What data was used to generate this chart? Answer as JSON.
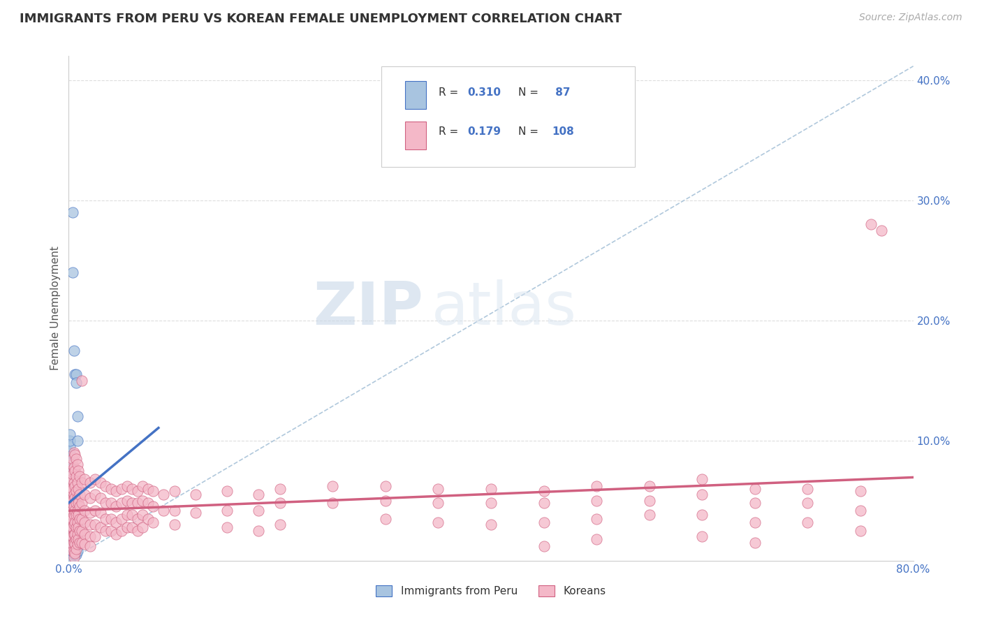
{
  "title": "IMMIGRANTS FROM PERU VS KOREAN FEMALE UNEMPLOYMENT CORRELATION CHART",
  "source": "Source: ZipAtlas.com",
  "ylabel": "Female Unemployment",
  "legend_label1": "Immigrants from Peru",
  "legend_label2": "Koreans",
  "color_peru": "#a8c4e0",
  "color_korean": "#f4b8c8",
  "color_line_peru": "#4472c4",
  "color_line_korean": "#d06080",
  "color_diag": "#b0c8dc",
  "xmin": 0.0,
  "xmax": 0.8,
  "ymin": 0.0,
  "ymax": 0.42,
  "yticks": [
    0.0,
    0.1,
    0.2,
    0.3,
    0.4
  ],
  "ytick_labels": [
    "",
    "10.0%",
    "20.0%",
    "30.0%",
    "40.0%"
  ],
  "xtick_labels": [
    "0.0%",
    "",
    "",
    "",
    "",
    "",
    "",
    "",
    "80.0%"
  ],
  "peru_scatter": [
    [
      0.001,
      0.038
    ],
    [
      0.001,
      0.04
    ],
    [
      0.001,
      0.042
    ],
    [
      0.001,
      0.045
    ],
    [
      0.001,
      0.048
    ],
    [
      0.001,
      0.052
    ],
    [
      0.001,
      0.06
    ],
    [
      0.001,
      0.065
    ],
    [
      0.001,
      0.068
    ],
    [
      0.001,
      0.07
    ],
    [
      0.001,
      0.072
    ],
    [
      0.001,
      0.075
    ],
    [
      0.001,
      0.078
    ],
    [
      0.001,
      0.08
    ],
    [
      0.001,
      0.082
    ],
    [
      0.001,
      0.085
    ],
    [
      0.001,
      0.09
    ],
    [
      0.001,
      0.095
    ],
    [
      0.001,
      0.1
    ],
    [
      0.001,
      0.105
    ],
    [
      0.001,
      0.025
    ],
    [
      0.001,
      0.02
    ],
    [
      0.001,
      0.015
    ],
    [
      0.001,
      0.01
    ],
    [
      0.001,
      0.008
    ],
    [
      0.001,
      0.005
    ],
    [
      0.001,
      0.003
    ],
    [
      0.001,
      0.001
    ],
    [
      0.002,
      0.07
    ],
    [
      0.002,
      0.06
    ],
    [
      0.002,
      0.055
    ],
    [
      0.002,
      0.05
    ],
    [
      0.002,
      0.045
    ],
    [
      0.002,
      0.04
    ],
    [
      0.002,
      0.035
    ],
    [
      0.002,
      0.03
    ],
    [
      0.002,
      0.025
    ],
    [
      0.002,
      0.02
    ],
    [
      0.002,
      0.015
    ],
    [
      0.002,
      0.01
    ],
    [
      0.003,
      0.065
    ],
    [
      0.003,
      0.055
    ],
    [
      0.003,
      0.05
    ],
    [
      0.003,
      0.045
    ],
    [
      0.003,
      0.04
    ],
    [
      0.003,
      0.035
    ],
    [
      0.003,
      0.03
    ],
    [
      0.003,
      0.025
    ],
    [
      0.003,
      0.02
    ],
    [
      0.003,
      0.015
    ],
    [
      0.003,
      0.01
    ],
    [
      0.003,
      0.008
    ],
    [
      0.004,
      0.29
    ],
    [
      0.004,
      0.24
    ],
    [
      0.004,
      0.06
    ],
    [
      0.004,
      0.055
    ],
    [
      0.004,
      0.048
    ],
    [
      0.004,
      0.04
    ],
    [
      0.004,
      0.035
    ],
    [
      0.004,
      0.028
    ],
    [
      0.004,
      0.022
    ],
    [
      0.004,
      0.015
    ],
    [
      0.005,
      0.175
    ],
    [
      0.005,
      0.055
    ],
    [
      0.005,
      0.045
    ],
    [
      0.005,
      0.038
    ],
    [
      0.005,
      0.03
    ],
    [
      0.005,
      0.022
    ],
    [
      0.005,
      0.015
    ],
    [
      0.005,
      0.008
    ],
    [
      0.006,
      0.155
    ],
    [
      0.006,
      0.05
    ],
    [
      0.006,
      0.04
    ],
    [
      0.006,
      0.03
    ],
    [
      0.006,
      0.02
    ],
    [
      0.006,
      0.012
    ],
    [
      0.006,
      0.005
    ],
    [
      0.007,
      0.155
    ],
    [
      0.007,
      0.148
    ],
    [
      0.007,
      0.05
    ],
    [
      0.007,
      0.04
    ],
    [
      0.007,
      0.03
    ],
    [
      0.007,
      0.02
    ],
    [
      0.007,
      0.01
    ],
    [
      0.007,
      0.005
    ],
    [
      0.008,
      0.12
    ],
    [
      0.008,
      0.1
    ],
    [
      0.008,
      0.045
    ],
    [
      0.008,
      0.035
    ],
    [
      0.008,
      0.025
    ],
    [
      0.008,
      0.015
    ],
    [
      0.008,
      0.008
    ]
  ],
  "korean_scatter": [
    [
      0.001,
      0.065
    ],
    [
      0.001,
      0.055
    ],
    [
      0.001,
      0.045
    ],
    [
      0.001,
      0.035
    ],
    [
      0.002,
      0.075
    ],
    [
      0.002,
      0.06
    ],
    [
      0.002,
      0.05
    ],
    [
      0.002,
      0.04
    ],
    [
      0.002,
      0.03
    ],
    [
      0.002,
      0.022
    ],
    [
      0.003,
      0.08
    ],
    [
      0.003,
      0.068
    ],
    [
      0.003,
      0.058
    ],
    [
      0.003,
      0.048
    ],
    [
      0.003,
      0.038
    ],
    [
      0.003,
      0.028
    ],
    [
      0.003,
      0.02
    ],
    [
      0.003,
      0.012
    ],
    [
      0.004,
      0.085
    ],
    [
      0.004,
      0.072
    ],
    [
      0.004,
      0.06
    ],
    [
      0.004,
      0.05
    ],
    [
      0.004,
      0.042
    ],
    [
      0.004,
      0.035
    ],
    [
      0.004,
      0.028
    ],
    [
      0.004,
      0.02
    ],
    [
      0.004,
      0.014
    ],
    [
      0.004,
      0.008
    ],
    [
      0.005,
      0.09
    ],
    [
      0.005,
      0.078
    ],
    [
      0.005,
      0.065
    ],
    [
      0.005,
      0.055
    ],
    [
      0.005,
      0.045
    ],
    [
      0.005,
      0.038
    ],
    [
      0.005,
      0.03
    ],
    [
      0.005,
      0.022
    ],
    [
      0.005,
      0.015
    ],
    [
      0.005,
      0.008
    ],
    [
      0.005,
      0.003
    ],
    [
      0.006,
      0.088
    ],
    [
      0.006,
      0.075
    ],
    [
      0.006,
      0.062
    ],
    [
      0.006,
      0.052
    ],
    [
      0.006,
      0.042
    ],
    [
      0.006,
      0.032
    ],
    [
      0.006,
      0.022
    ],
    [
      0.006,
      0.014
    ],
    [
      0.006,
      0.006
    ],
    [
      0.007,
      0.085
    ],
    [
      0.007,
      0.07
    ],
    [
      0.007,
      0.058
    ],
    [
      0.007,
      0.048
    ],
    [
      0.007,
      0.038
    ],
    [
      0.007,
      0.028
    ],
    [
      0.007,
      0.018
    ],
    [
      0.007,
      0.01
    ],
    [
      0.008,
      0.08
    ],
    [
      0.008,
      0.065
    ],
    [
      0.008,
      0.052
    ],
    [
      0.008,
      0.042
    ],
    [
      0.008,
      0.032
    ],
    [
      0.008,
      0.022
    ],
    [
      0.008,
      0.014
    ],
    [
      0.009,
      0.075
    ],
    [
      0.009,
      0.06
    ],
    [
      0.009,
      0.048
    ],
    [
      0.009,
      0.038
    ],
    [
      0.009,
      0.028
    ],
    [
      0.009,
      0.018
    ],
    [
      0.01,
      0.07
    ],
    [
      0.01,
      0.055
    ],
    [
      0.01,
      0.045
    ],
    [
      0.01,
      0.035
    ],
    [
      0.01,
      0.025
    ],
    [
      0.01,
      0.015
    ],
    [
      0.012,
      0.15
    ],
    [
      0.012,
      0.065
    ],
    [
      0.012,
      0.048
    ],
    [
      0.012,
      0.035
    ],
    [
      0.012,
      0.025
    ],
    [
      0.012,
      0.015
    ],
    [
      0.015,
      0.068
    ],
    [
      0.015,
      0.055
    ],
    [
      0.015,
      0.042
    ],
    [
      0.015,
      0.032
    ],
    [
      0.015,
      0.022
    ],
    [
      0.015,
      0.014
    ],
    [
      0.02,
      0.065
    ],
    [
      0.02,
      0.052
    ],
    [
      0.02,
      0.04
    ],
    [
      0.02,
      0.03
    ],
    [
      0.02,
      0.02
    ],
    [
      0.02,
      0.012
    ],
    [
      0.025,
      0.068
    ],
    [
      0.025,
      0.055
    ],
    [
      0.025,
      0.042
    ],
    [
      0.025,
      0.03
    ],
    [
      0.025,
      0.02
    ],
    [
      0.03,
      0.065
    ],
    [
      0.03,
      0.052
    ],
    [
      0.03,
      0.04
    ],
    [
      0.03,
      0.028
    ],
    [
      0.035,
      0.062
    ],
    [
      0.035,
      0.048
    ],
    [
      0.035,
      0.035
    ],
    [
      0.035,
      0.025
    ],
    [
      0.04,
      0.06
    ],
    [
      0.04,
      0.048
    ],
    [
      0.04,
      0.035
    ],
    [
      0.04,
      0.025
    ],
    [
      0.045,
      0.058
    ],
    [
      0.045,
      0.045
    ],
    [
      0.045,
      0.032
    ],
    [
      0.045,
      0.022
    ],
    [
      0.05,
      0.06
    ],
    [
      0.05,
      0.048
    ],
    [
      0.05,
      0.035
    ],
    [
      0.05,
      0.025
    ],
    [
      0.055,
      0.062
    ],
    [
      0.055,
      0.05
    ],
    [
      0.055,
      0.038
    ],
    [
      0.055,
      0.028
    ],
    [
      0.06,
      0.06
    ],
    [
      0.06,
      0.048
    ],
    [
      0.06,
      0.038
    ],
    [
      0.06,
      0.028
    ],
    [
      0.065,
      0.058
    ],
    [
      0.065,
      0.048
    ],
    [
      0.065,
      0.035
    ],
    [
      0.065,
      0.025
    ],
    [
      0.07,
      0.062
    ],
    [
      0.07,
      0.05
    ],
    [
      0.07,
      0.038
    ],
    [
      0.07,
      0.028
    ],
    [
      0.075,
      0.06
    ],
    [
      0.075,
      0.048
    ],
    [
      0.075,
      0.035
    ],
    [
      0.08,
      0.058
    ],
    [
      0.08,
      0.045
    ],
    [
      0.08,
      0.032
    ],
    [
      0.09,
      0.055
    ],
    [
      0.09,
      0.042
    ],
    [
      0.1,
      0.058
    ],
    [
      0.1,
      0.042
    ],
    [
      0.1,
      0.03
    ],
    [
      0.12,
      0.055
    ],
    [
      0.12,
      0.04
    ],
    [
      0.15,
      0.058
    ],
    [
      0.15,
      0.042
    ],
    [
      0.15,
      0.028
    ],
    [
      0.18,
      0.055
    ],
    [
      0.18,
      0.042
    ],
    [
      0.18,
      0.025
    ],
    [
      0.2,
      0.06
    ],
    [
      0.2,
      0.048
    ],
    [
      0.2,
      0.03
    ],
    [
      0.25,
      0.062
    ],
    [
      0.25,
      0.048
    ],
    [
      0.3,
      0.062
    ],
    [
      0.3,
      0.05
    ],
    [
      0.3,
      0.035
    ],
    [
      0.35,
      0.06
    ],
    [
      0.35,
      0.048
    ],
    [
      0.35,
      0.032
    ],
    [
      0.4,
      0.06
    ],
    [
      0.4,
      0.048
    ],
    [
      0.4,
      0.03
    ],
    [
      0.45,
      0.058
    ],
    [
      0.45,
      0.048
    ],
    [
      0.45,
      0.032
    ],
    [
      0.45,
      0.012
    ],
    [
      0.5,
      0.062
    ],
    [
      0.5,
      0.05
    ],
    [
      0.5,
      0.035
    ],
    [
      0.5,
      0.018
    ],
    [
      0.55,
      0.062
    ],
    [
      0.55,
      0.05
    ],
    [
      0.55,
      0.038
    ],
    [
      0.6,
      0.068
    ],
    [
      0.6,
      0.055
    ],
    [
      0.6,
      0.038
    ],
    [
      0.6,
      0.02
    ],
    [
      0.65,
      0.06
    ],
    [
      0.65,
      0.048
    ],
    [
      0.65,
      0.032
    ],
    [
      0.65,
      0.015
    ],
    [
      0.7,
      0.06
    ],
    [
      0.7,
      0.048
    ],
    [
      0.7,
      0.032
    ],
    [
      0.75,
      0.058
    ],
    [
      0.75,
      0.042
    ],
    [
      0.75,
      0.025
    ],
    [
      0.76,
      0.28
    ],
    [
      0.77,
      0.275
    ]
  ],
  "watermark_zip": "ZIP",
  "watermark_atlas": "atlas",
  "background_color": "#ffffff",
  "grid_color": "#dddddd"
}
